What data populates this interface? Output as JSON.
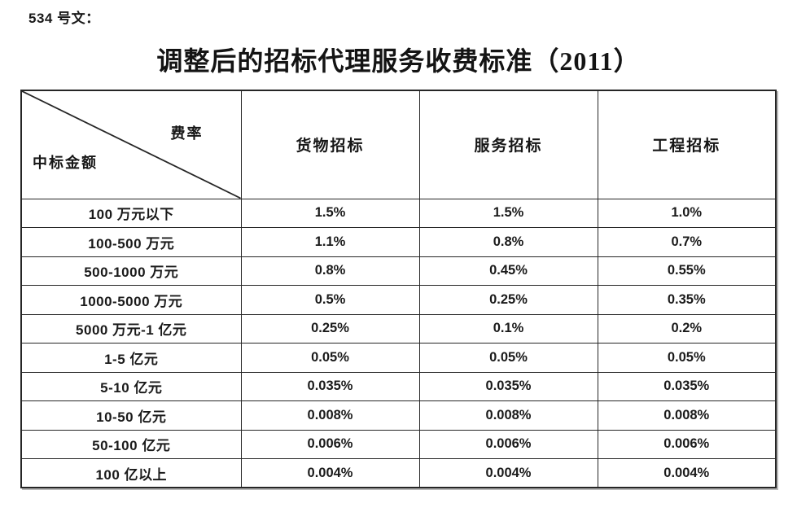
{
  "doc_label": "534 号文：",
  "title": "调整后的招标代理服务收费标准（2011）",
  "table": {
    "corner": {
      "top_right": "费率",
      "bottom_left": "中标金额"
    },
    "columns": [
      "货物招标",
      "服务招标",
      "工程招标"
    ],
    "rows": [
      {
        "amount": "100 万元以下",
        "goods": "1.5%",
        "service": "1.5%",
        "engineering": "1.0%"
      },
      {
        "amount": "100-500 万元",
        "goods": "1.1%",
        "service": "0.8%",
        "engineering": "0.7%"
      },
      {
        "amount": "500-1000 万元",
        "goods": "0.8%",
        "service": "0.45%",
        "engineering": "0.55%"
      },
      {
        "amount": "1000-5000 万元",
        "goods": "0.5%",
        "service": "0.25%",
        "engineering": "0.35%"
      },
      {
        "amount": "5000 万元-1 亿元",
        "goods": "0.25%",
        "service": "0.1%",
        "engineering": "0.2%"
      },
      {
        "amount": "1-5 亿元",
        "goods": "0.05%",
        "service": "0.05%",
        "engineering": "0.05%"
      },
      {
        "amount": "5-10 亿元",
        "goods": "0.035%",
        "service": "0.035%",
        "engineering": "0.035%"
      },
      {
        "amount": "10-50 亿元",
        "goods": "0.008%",
        "service": "0.008%",
        "engineering": "0.008%"
      },
      {
        "amount": "50-100 亿元",
        "goods": "0.006%",
        "service": "0.006%",
        "engineering": "0.006%"
      },
      {
        "amount": "100 亿以上",
        "goods": "0.004%",
        "service": "0.004%",
        "engineering": "0.004%"
      }
    ]
  },
  "colors": {
    "text": "#1a1a1a",
    "border": "#262626",
    "table_shadow": "#b8b8b8",
    "background": "#ffffff"
  }
}
